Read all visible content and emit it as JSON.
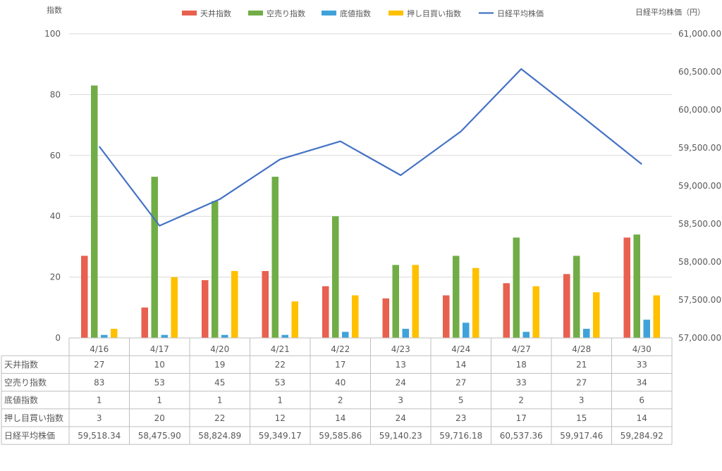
{
  "chart_data": {
    "type": "bar",
    "left_axis_title": "指数",
    "right_axis_title": "日経平均株価（円）",
    "categories": [
      "4/16",
      "4/17",
      "4/20",
      "4/21",
      "4/22",
      "4/23",
      "4/24",
      "4/27",
      "4/28",
      "4/30"
    ],
    "left_ylim": [
      0,
      100
    ],
    "left_ticks": [
      "0",
      "20",
      "40",
      "60",
      "80",
      "100"
    ],
    "right_ylim": [
      57000,
      61000
    ],
    "right_ticks": [
      "57,000.00",
      "57,500.00",
      "58,000.00",
      "58,500.00",
      "59,000.00",
      "59,500.00",
      "60,000.00",
      "60,500.00",
      "61,000.00"
    ],
    "grid": true,
    "legend_position": "top",
    "series": [
      {
        "name": "天井指数",
        "type": "bar",
        "axis": "left",
        "color": "#E8604F",
        "values": [
          27,
          10,
          19,
          22,
          17,
          13,
          14,
          18,
          21,
          33
        ],
        "labels": [
          "27",
          "10",
          "19",
          "22",
          "17",
          "13",
          "14",
          "18",
          "21",
          "33"
        ]
      },
      {
        "name": "空売り指数",
        "type": "bar",
        "axis": "left",
        "color": "#70AD47",
        "values": [
          83,
          53,
          45,
          53,
          40,
          24,
          27,
          33,
          27,
          34
        ],
        "labels": [
          "83",
          "53",
          "45",
          "53",
          "40",
          "24",
          "27",
          "33",
          "27",
          "34"
        ]
      },
      {
        "name": "底値指数",
        "type": "bar",
        "axis": "left",
        "color": "#3FA3DA",
        "values": [
          1,
          1,
          1,
          1,
          2,
          3,
          5,
          2,
          3,
          6
        ],
        "labels": [
          "1",
          "1",
          "1",
          "1",
          "2",
          "3",
          "5",
          "2",
          "3",
          "6"
        ]
      },
      {
        "name": "押し目買い指数",
        "type": "bar",
        "axis": "left",
        "color": "#FFC000",
        "values": [
          3,
          20,
          22,
          12,
          14,
          24,
          23,
          17,
          15,
          14
        ],
        "labels": [
          "3",
          "20",
          "22",
          "12",
          "14",
          "24",
          "23",
          "17",
          "15",
          "14"
        ]
      },
      {
        "name": "日経平均株価",
        "type": "line",
        "axis": "right",
        "color": "#4472C4",
        "values": [
          59518.34,
          58475.9,
          58824.89,
          59349.17,
          59585.86,
          59140.23,
          59716.18,
          60537.36,
          59917.46,
          59284.92
        ],
        "labels": [
          "59,518.34",
          "58,475.90",
          "58,824.89",
          "59,349.17",
          "59,585.86",
          "59,140.23",
          "59,716.18",
          "60,537.36",
          "59,917.46",
          "59,284.92"
        ]
      }
    ]
  }
}
